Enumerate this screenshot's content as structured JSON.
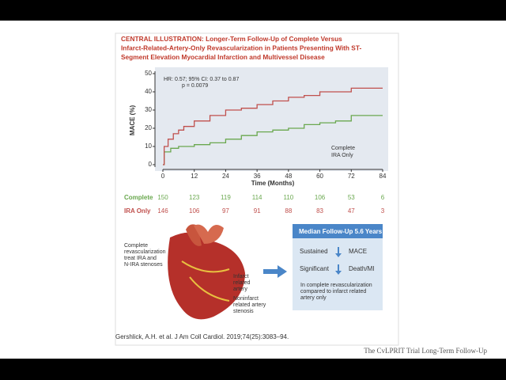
{
  "chart_data": {
    "type": "step",
    "title": [
      "CENTRAL ILLUSTRATION: Longer-Term Follow-Up of Complete Versus",
      "Infarct-Related-Artery-Only Revascularization in Patients Presenting With ST-",
      "Segment Elevation Myocardial Infarction and Multivessel Disease"
    ],
    "annotations": [
      "HR: 0.57; 95% CI: 0.37 to 0.87",
      "p = 0.0079"
    ],
    "y_label": "MACE (%)",
    "x_label": "Time (Months)",
    "xlim": [
      0,
      84
    ],
    "xticks": [
      0,
      12,
      24,
      36,
      48,
      60,
      72,
      84
    ],
    "ylim": [
      0,
      50
    ],
    "yticks": [
      0,
      10,
      20,
      30,
      40,
      50
    ],
    "series": [
      {
        "name": "Complete",
        "color": "#6aa84f",
        "x": [
          0,
          0.5,
          3,
          6,
          12,
          18,
          24,
          30,
          36,
          42,
          48,
          54,
          60,
          66,
          72,
          84
        ],
        "values": [
          0,
          7,
          9,
          10,
          11,
          12,
          14,
          16,
          18,
          19,
          20,
          22,
          23,
          24,
          27,
          27
        ]
      },
      {
        "name": "IRA Only",
        "color": "#c0504d",
        "x": [
          0,
          0.5,
          2,
          4,
          6,
          8,
          12,
          18,
          24,
          30,
          36,
          42,
          48,
          54,
          60,
          66,
          72,
          84
        ],
        "values": [
          0,
          10,
          14,
          17,
          19,
          21,
          24,
          27,
          30,
          31,
          33,
          35,
          37,
          38,
          40,
          40,
          42,
          42
        ]
      }
    ],
    "at_risk": [
      {
        "name": "Complete",
        "values": [
          150,
          123,
          119,
          114,
          110,
          106,
          53,
          6
        ]
      },
      {
        "name": "IRA Only",
        "values": [
          146,
          106,
          97,
          91,
          88,
          83,
          47,
          3
        ]
      }
    ]
  },
  "heart_labels": {
    "complete": [
      "Complete",
      "revascularization",
      "treat IRA and",
      "N-IRA stenoses"
    ],
    "infarct": [
      "Infarct",
      "related",
      "artery"
    ],
    "noninfarct": [
      "Noninfarct",
      "related artery",
      "stenosis"
    ]
  },
  "summary": {
    "header": "Median Follow-Up 5.6 Years",
    "rows": [
      [
        "Sustained",
        "MACE"
      ],
      [
        "Significant",
        "Death/MI"
      ]
    ],
    "note": [
      "In complete revascularization",
      "compared to infarct related",
      "artery only"
    ]
  },
  "citation": "Gershlick, A.H. et al. J Am Coll Cardiol. 2019;74(25):3083–94.",
  "footer": "The CvLPRIT Trial Long-Term Follow-Up"
}
